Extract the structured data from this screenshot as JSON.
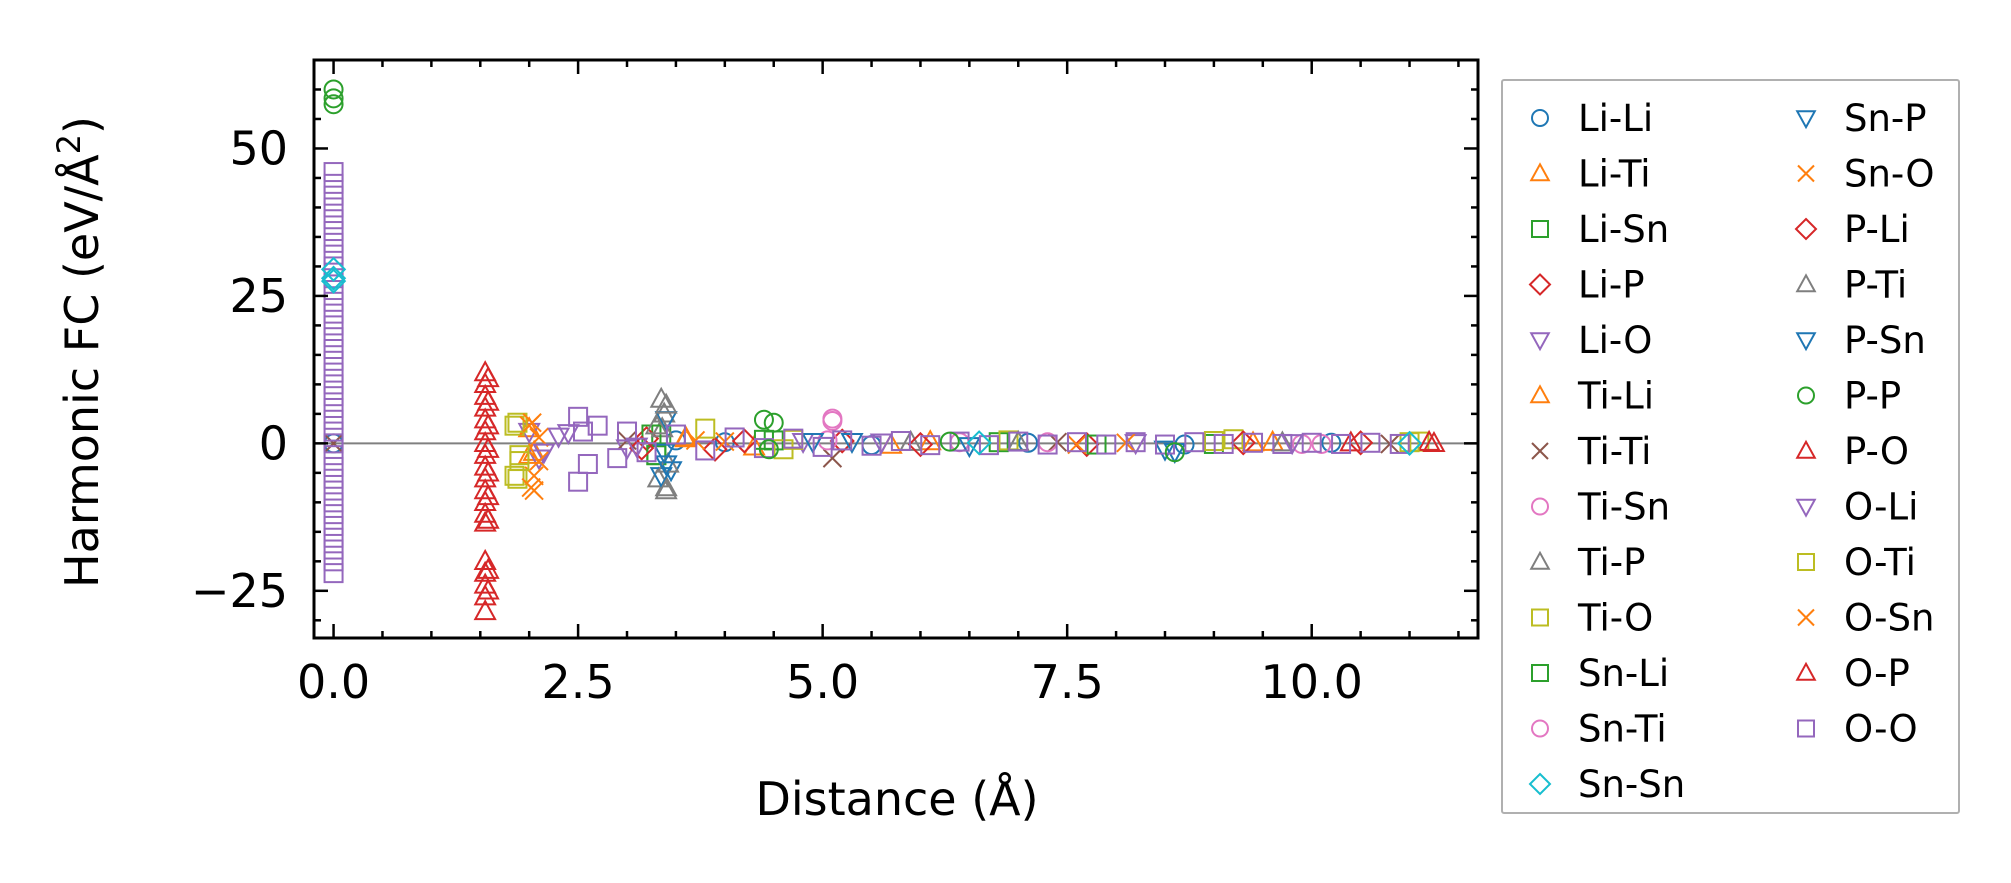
{
  "chart_data": {
    "type": "scatter",
    "title": "",
    "xlabel": "Distance (Å)",
    "ylabel_main": "Harmonic FC (eV/Å",
    "ylabel_sup": "2",
    "ylabel_close": ")",
    "xlim": [
      -0.2,
      11.7
    ],
    "ylim": [
      -33,
      65
    ],
    "xticks": [
      0.0,
      2.5,
      5.0,
      7.5,
      10.0
    ],
    "xtick_labels": [
      "0.0",
      "2.5",
      "5.0",
      "7.5",
      "10.0"
    ],
    "yticks": [
      -25,
      0,
      25,
      50
    ],
    "ytick_labels": [
      "−25",
      "0",
      "25",
      "50"
    ],
    "zero_line": true,
    "grid": false,
    "legend_position": "right, outside plot",
    "series": [
      {
        "name": "Li-Li",
        "marker": "circle",
        "color": "#1f77b4",
        "points": [
          [
            0,
            0
          ],
          [
            3.5,
            0.5
          ],
          [
            4.0,
            0.2
          ],
          [
            5.5,
            -0.3
          ],
          [
            7.1,
            0.1
          ],
          [
            8.7,
            -0.2
          ],
          [
            10.2,
            0.1
          ]
        ]
      },
      {
        "name": "Li-Ti",
        "marker": "triangle-up",
        "color": "#ff7f0e",
        "points": [
          [
            2.0,
            2.5
          ],
          [
            2.05,
            -1.5
          ],
          [
            3.6,
            0.8
          ],
          [
            4.3,
            -0.6
          ],
          [
            6.1,
            0.3
          ],
          [
            9.4,
            0.1
          ]
        ]
      },
      {
        "name": "Li-Sn",
        "marker": "square",
        "color": "#2ca02c",
        "points": [
          [
            3.3,
            -2.0
          ],
          [
            3.35,
            1.5
          ],
          [
            4.5,
            0.5
          ],
          [
            6.8,
            0.2
          ],
          [
            9.0,
            -0.1
          ]
        ]
      },
      {
        "name": "Li-P",
        "marker": "diamond",
        "color": "#d62728",
        "points": [
          [
            3.2,
            0.8
          ],
          [
            3.9,
            -1.0
          ],
          [
            5.2,
            0.4
          ],
          [
            7.7,
            -0.2
          ],
          [
            10.5,
            0.1
          ]
        ]
      },
      {
        "name": "Li-O",
        "marker": "triangle-down",
        "color": "#9467bd",
        "points": [
          [
            2.0,
            2.0
          ],
          [
            2.1,
            -2.5
          ],
          [
            2.3,
            1.2
          ],
          [
            3.0,
            -0.8
          ],
          [
            4.8,
            0.3
          ],
          [
            8.2,
            0.1
          ]
        ]
      },
      {
        "name": "Ti-Li",
        "marker": "triangle-up",
        "color": "#ff7f0e",
        "points": [
          [
            2.0,
            -2.0
          ],
          [
            3.6,
            1.0
          ],
          [
            5.7,
            -0.3
          ],
          [
            9.6,
            0.2
          ]
        ]
      },
      {
        "name": "Ti-Ti",
        "marker": "x",
        "color": "#8c564b",
        "points": [
          [
            0,
            0
          ],
          [
            3.0,
            0.5
          ],
          [
            5.1,
            -2.5
          ],
          [
            7.4,
            0.2
          ],
          [
            10.8,
            -0.1
          ]
        ]
      },
      {
        "name": "Ti-Sn",
        "marker": "circle",
        "color": "#e377c2",
        "points": [
          [
            5.1,
            3.8
          ],
          [
            5.05,
            0.5
          ],
          [
            7.3,
            0.2
          ],
          [
            9.9,
            -0.1
          ]
        ]
      },
      {
        "name": "Ti-P",
        "marker": "triangle-up",
        "color": "#7f7f7f",
        "points": [
          [
            3.35,
            7.5
          ],
          [
            3.38,
            5.0
          ],
          [
            3.4,
            -7.5
          ],
          [
            3.32,
            -6.0
          ],
          [
            3.36,
            2.5
          ],
          [
            5.9,
            0.2
          ],
          [
            9.7,
            0.1
          ]
        ]
      },
      {
        "name": "Ti-O",
        "marker": "square",
        "color": "#bcbd22",
        "points": [
          [
            1.85,
            3.0
          ],
          [
            1.85,
            -5.5
          ],
          [
            1.9,
            -2.0
          ],
          [
            3.8,
            2.5
          ],
          [
            4.6,
            -1.0
          ],
          [
            6.9,
            0.5
          ],
          [
            9.2,
            0.7
          ],
          [
            11.1,
            0.3
          ]
        ]
      },
      {
        "name": "Sn-Li",
        "marker": "square",
        "color": "#2ca02c",
        "points": [
          [
            3.25,
            1.5
          ],
          [
            3.3,
            -2.0
          ],
          [
            4.4,
            0.6
          ],
          [
            7.8,
            -0.2
          ]
        ]
      },
      {
        "name": "Sn-Ti",
        "marker": "circle",
        "color": "#e377c2",
        "points": [
          [
            5.1,
            4.2
          ],
          [
            6.4,
            0.2
          ],
          [
            10.1,
            -0.1
          ]
        ]
      },
      {
        "name": "Sn-Sn",
        "marker": "diamond",
        "color": "#17becf",
        "points": [
          [
            0,
            28
          ],
          [
            0,
            29.5
          ],
          [
            0,
            27.5
          ],
          [
            6.6,
            0.1
          ],
          [
            11.0,
            0.0
          ]
        ]
      },
      {
        "name": "Sn-P",
        "marker": "triangle-down",
        "color": "#1f77b4",
        "points": [
          [
            3.35,
            -5.5
          ],
          [
            3.4,
            4.0
          ],
          [
            3.45,
            -4.5
          ],
          [
            5.3,
            0.3
          ],
          [
            6.5,
            -0.4
          ],
          [
            8.6,
            -1.4
          ]
        ]
      },
      {
        "name": "Sn-O",
        "marker": "x",
        "color": "#ff7f0e",
        "points": [
          [
            2.0,
            3.0
          ],
          [
            2.02,
            -7.5
          ],
          [
            2.05,
            -5.5
          ],
          [
            2.1,
            1.0
          ],
          [
            3.7,
            0.5
          ],
          [
            8.1,
            0.1
          ]
        ]
      },
      {
        "name": "P-Li",
        "marker": "diamond",
        "color": "#d62728",
        "points": [
          [
            3.15,
            -0.8
          ],
          [
            4.2,
            0.4
          ],
          [
            6.0,
            -0.2
          ],
          [
            9.3,
            0.1
          ]
        ]
      },
      {
        "name": "P-Ti",
        "marker": "triangle-up",
        "color": "#7f7f7f",
        "points": [
          [
            3.4,
            -8.0
          ],
          [
            3.4,
            6.5
          ],
          [
            3.3,
            3.0
          ],
          [
            3.42,
            -3.5
          ],
          [
            7.0,
            0.2
          ]
        ]
      },
      {
        "name": "P-Sn",
        "marker": "triangle-down",
        "color": "#1f77b4",
        "points": [
          [
            3.4,
            -3.5
          ],
          [
            3.38,
            -1.5
          ],
          [
            4.9,
            0.3
          ],
          [
            8.5,
            -1.0
          ]
        ]
      },
      {
        "name": "P-P",
        "marker": "circle",
        "color": "#2ca02c",
        "points": [
          [
            0,
            60
          ],
          [
            0,
            58.5
          ],
          [
            0,
            57.5
          ],
          [
            4.4,
            4.0
          ],
          [
            4.5,
            3.5
          ],
          [
            4.45,
            -1.0
          ],
          [
            6.3,
            0.3
          ],
          [
            8.6,
            -1.5
          ]
        ]
      },
      {
        "name": "P-O",
        "marker": "triangle-up",
        "color": "#d62728",
        "points": [
          [
            1.55,
            12.0
          ],
          [
            1.55,
            10.0
          ],
          [
            1.55,
            8.0
          ],
          [
            1.55,
            6.0
          ],
          [
            1.55,
            4.0
          ],
          [
            1.55,
            2.0
          ],
          [
            1.55,
            0.0
          ],
          [
            1.55,
            -2.0
          ],
          [
            1.55,
            -4.0
          ],
          [
            1.55,
            -6.0
          ],
          [
            1.55,
            -8.0
          ],
          [
            1.55,
            -10.0
          ],
          [
            1.55,
            -12.0
          ],
          [
            1.55,
            -13.5
          ],
          [
            1.55,
            -20.0
          ],
          [
            1.55,
            -22.0
          ],
          [
            1.55,
            -24.0
          ],
          [
            1.55,
            -26.0
          ],
          [
            1.55,
            -28.5
          ],
          [
            11.2,
            0.2
          ]
        ]
      },
      {
        "name": "O-Li",
        "marker": "triangle-down",
        "color": "#9467bd",
        "points": [
          [
            2.15,
            -1.5
          ],
          [
            2.4,
            1.8
          ],
          [
            3.1,
            -0.5
          ],
          [
            5.6,
            0.2
          ],
          [
            9.8,
            0.1
          ]
        ]
      },
      {
        "name": "O-Ti",
        "marker": "square",
        "color": "#bcbd22",
        "points": [
          [
            1.88,
            3.5
          ],
          [
            1.88,
            -6.0
          ],
          [
            1.9,
            -3.0
          ],
          [
            4.7,
            0.6
          ],
          [
            9.0,
            0.4
          ],
          [
            11.0,
            0.2
          ]
        ]
      },
      {
        "name": "O-Sn",
        "marker": "x",
        "color": "#ff7f0e",
        "points": [
          [
            2.05,
            -8.0
          ],
          [
            2.03,
            3.5
          ],
          [
            2.1,
            -3.0
          ],
          [
            4.0,
            0.3
          ],
          [
            7.6,
            -0.2
          ]
        ]
      },
      {
        "name": "O-P",
        "marker": "triangle-up",
        "color": "#d62728",
        "points": [
          [
            1.58,
            11.0
          ],
          [
            1.58,
            7.0
          ],
          [
            1.58,
            3.0
          ],
          [
            1.58,
            -1.0
          ],
          [
            1.58,
            -5.0
          ],
          [
            1.58,
            -9.0
          ],
          [
            1.58,
            -13.0
          ],
          [
            1.58,
            -21.5
          ],
          [
            1.58,
            -25.0
          ],
          [
            10.4,
            0.1
          ],
          [
            11.25,
            0.0
          ]
        ]
      },
      {
        "name": "O-O",
        "marker": "square",
        "color": "#9467bd",
        "points": [
          [
            0,
            46
          ],
          [
            0,
            44
          ],
          [
            0,
            42
          ],
          [
            0,
            40
          ],
          [
            0,
            38
          ],
          [
            0,
            36
          ],
          [
            0,
            34
          ],
          [
            0,
            32
          ],
          [
            0,
            30
          ],
          [
            0,
            28
          ],
          [
            0,
            26
          ],
          [
            0,
            24
          ],
          [
            0,
            22
          ],
          [
            0,
            20
          ],
          [
            0,
            18
          ],
          [
            0,
            16
          ],
          [
            0,
            14
          ],
          [
            0,
            12
          ],
          [
            0,
            10
          ],
          [
            0,
            8
          ],
          [
            0,
            6
          ],
          [
            0,
            4
          ],
          [
            0,
            2
          ],
          [
            0,
            0
          ],
          [
            0,
            -2
          ],
          [
            0,
            -4
          ],
          [
            0,
            -6
          ],
          [
            0,
            -8
          ],
          [
            0,
            -10
          ],
          [
            0,
            -12
          ],
          [
            0,
            -14
          ],
          [
            0,
            -16
          ],
          [
            0,
            -18
          ],
          [
            0,
            -20
          ],
          [
            0,
            -22
          ],
          [
            2.5,
            4.5
          ],
          [
            2.5,
            -6.5
          ],
          [
            2.55,
            2.0
          ],
          [
            2.6,
            -3.5
          ],
          [
            2.7,
            3.0
          ],
          [
            2.9,
            -2.5
          ],
          [
            3.0,
            2.0
          ],
          [
            3.2,
            -1.5
          ],
          [
            3.5,
            1.5
          ],
          [
            3.8,
            -1.2
          ],
          [
            4.1,
            1.0
          ],
          [
            4.4,
            -0.8
          ],
          [
            4.7,
            0.8
          ],
          [
            5.0,
            -0.6
          ],
          [
            5.2,
            0.5
          ],
          [
            5.5,
            -0.4
          ],
          [
            5.8,
            0.4
          ],
          [
            6.1,
            -0.3
          ],
          [
            6.4,
            0.3
          ],
          [
            6.7,
            -0.3
          ],
          [
            7.0,
            0.3
          ],
          [
            7.3,
            -0.2
          ],
          [
            7.6,
            0.2
          ],
          [
            7.9,
            -0.2
          ],
          [
            8.2,
            0.2
          ],
          [
            8.5,
            -0.2
          ],
          [
            8.8,
            0.2
          ],
          [
            9.1,
            -0.1
          ],
          [
            9.4,
            0.1
          ],
          [
            9.7,
            -0.1
          ],
          [
            10.0,
            0.1
          ],
          [
            10.3,
            -0.1
          ],
          [
            10.6,
            0.1
          ],
          [
            10.9,
            -0.1
          ]
        ]
      }
    ]
  }
}
